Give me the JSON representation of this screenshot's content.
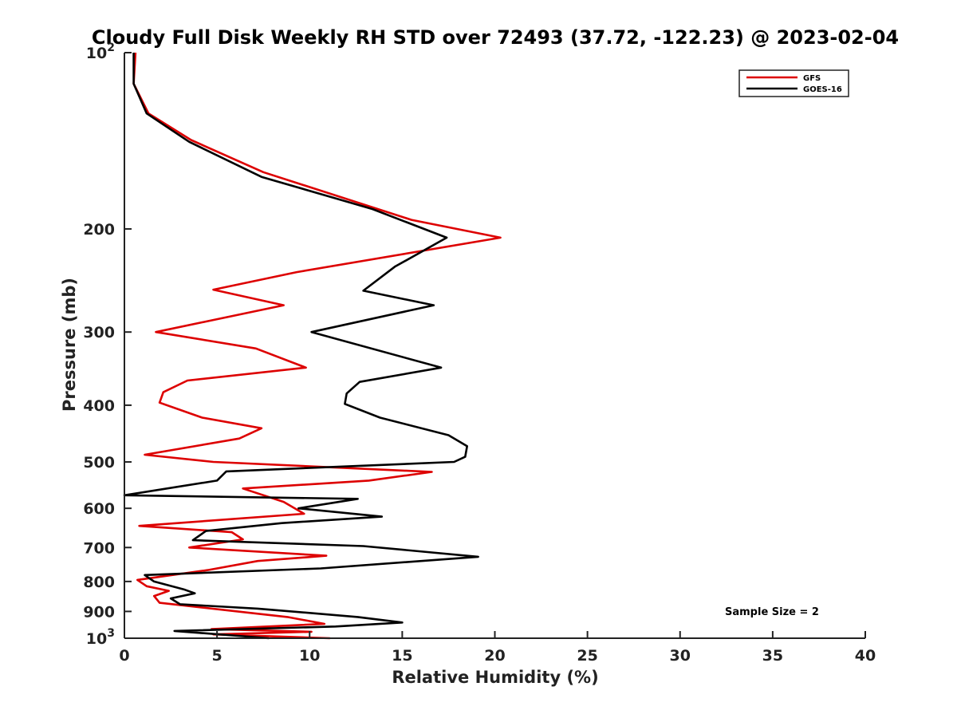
{
  "chart_data": {
    "type": "line",
    "title": "Cloudy Full Disk Weekly RH STD over 72493 (37.72, -122.23) @ 2023-02-04",
    "xlabel": "Relative Humidity (%)",
    "ylabel": "Pressure (mb)",
    "xlim": [
      0,
      40
    ],
    "ylim": [
      1000,
      100
    ],
    "yscale": "log",
    "x_ticks": [
      0,
      5,
      10,
      15,
      20,
      25,
      30,
      35,
      40
    ],
    "y_ticks": [
      100,
      200,
      300,
      400,
      500,
      600,
      700,
      800,
      900,
      1000
    ],
    "y_tick_labels": [
      {
        "base": "10",
        "exp": "2"
      },
      {
        "text": "200"
      },
      {
        "text": "300"
      },
      {
        "text": "400"
      },
      {
        "text": "500"
      },
      {
        "text": "600"
      },
      {
        "text": "700"
      },
      {
        "text": "800"
      },
      {
        "text": "900"
      },
      {
        "base": "10",
        "exp": "3"
      }
    ],
    "legend_position": "top-right",
    "grid": false,
    "annotation": "Sample Size = 2",
    "series": [
      {
        "name": "GFS",
        "color": "#dd0000",
        "points": [
          [
            0.6,
            100
          ],
          [
            0.5,
            113
          ],
          [
            1.3,
            127
          ],
          [
            3.6,
            141
          ],
          [
            7.5,
            160
          ],
          [
            15.5,
            193
          ],
          [
            20.3,
            207
          ],
          [
            9.3,
            237
          ],
          [
            4.8,
            254
          ],
          [
            8.6,
            270
          ],
          [
            1.7,
            300
          ],
          [
            7.1,
            320
          ],
          [
            9.8,
            345
          ],
          [
            3.4,
            363
          ],
          [
            2.1,
            380
          ],
          [
            1.9,
            396
          ],
          [
            4.2,
            420
          ],
          [
            7.4,
            438
          ],
          [
            6.2,
            456
          ],
          [
            1.1,
            486
          ],
          [
            4.8,
            500
          ],
          [
            16.6,
            520
          ],
          [
            13.2,
            538
          ],
          [
            6.4,
            555
          ],
          [
            8.6,
            585
          ],
          [
            9.7,
            613
          ],
          [
            0.8,
            643
          ],
          [
            5.8,
            659
          ],
          [
            6.4,
            678
          ],
          [
            3.5,
            700
          ],
          [
            10.9,
            723
          ],
          [
            7.2,
            738
          ],
          [
            4.5,
            765
          ],
          [
            0.7,
            795
          ],
          [
            1.2,
            815
          ],
          [
            2.4,
            830
          ],
          [
            1.6,
            847
          ],
          [
            1.9,
            870
          ],
          [
            8.8,
            920
          ],
          [
            10.8,
            945
          ],
          [
            4.7,
            965
          ],
          [
            10.1,
            975
          ],
          [
            4.8,
            985
          ],
          [
            11.1,
            1000
          ]
        ]
      },
      {
        "name": "GOES-16",
        "color": "#000000",
        "points": [
          [
            0.5,
            100
          ],
          [
            0.5,
            113
          ],
          [
            1.2,
            127
          ],
          [
            3.5,
            142
          ],
          [
            7.4,
            163
          ],
          [
            13.4,
            185
          ],
          [
            17.4,
            207
          ],
          [
            14.6,
            232
          ],
          [
            12.9,
            255
          ],
          [
            16.7,
            270
          ],
          [
            10.1,
            300
          ],
          [
            17.1,
            345
          ],
          [
            12.7,
            365
          ],
          [
            12.0,
            382
          ],
          [
            11.9,
            398
          ],
          [
            13.8,
            420
          ],
          [
            17.5,
            450
          ],
          [
            18.5,
            470
          ],
          [
            18.4,
            490
          ],
          [
            17.8,
            500
          ],
          [
            5.5,
            519
          ],
          [
            5.0,
            538
          ],
          [
            0.0,
            570
          ],
          [
            12.6,
            578
          ],
          [
            9.4,
            600
          ],
          [
            13.9,
            620
          ],
          [
            8.5,
            636
          ],
          [
            4.4,
            656
          ],
          [
            3.7,
            680
          ],
          [
            12.9,
            696
          ],
          [
            19.1,
            726
          ],
          [
            10.6,
            760
          ],
          [
            1.1,
            780
          ],
          [
            1.6,
            800
          ],
          [
            3.2,
            825
          ],
          [
            3.8,
            838
          ],
          [
            2.5,
            855
          ],
          [
            3.0,
            875
          ],
          [
            7.2,
            890
          ],
          [
            12.6,
            920
          ],
          [
            15.0,
            940
          ],
          [
            11.4,
            955
          ],
          [
            2.7,
            972
          ],
          [
            7.8,
            1000
          ]
        ]
      }
    ]
  }
}
